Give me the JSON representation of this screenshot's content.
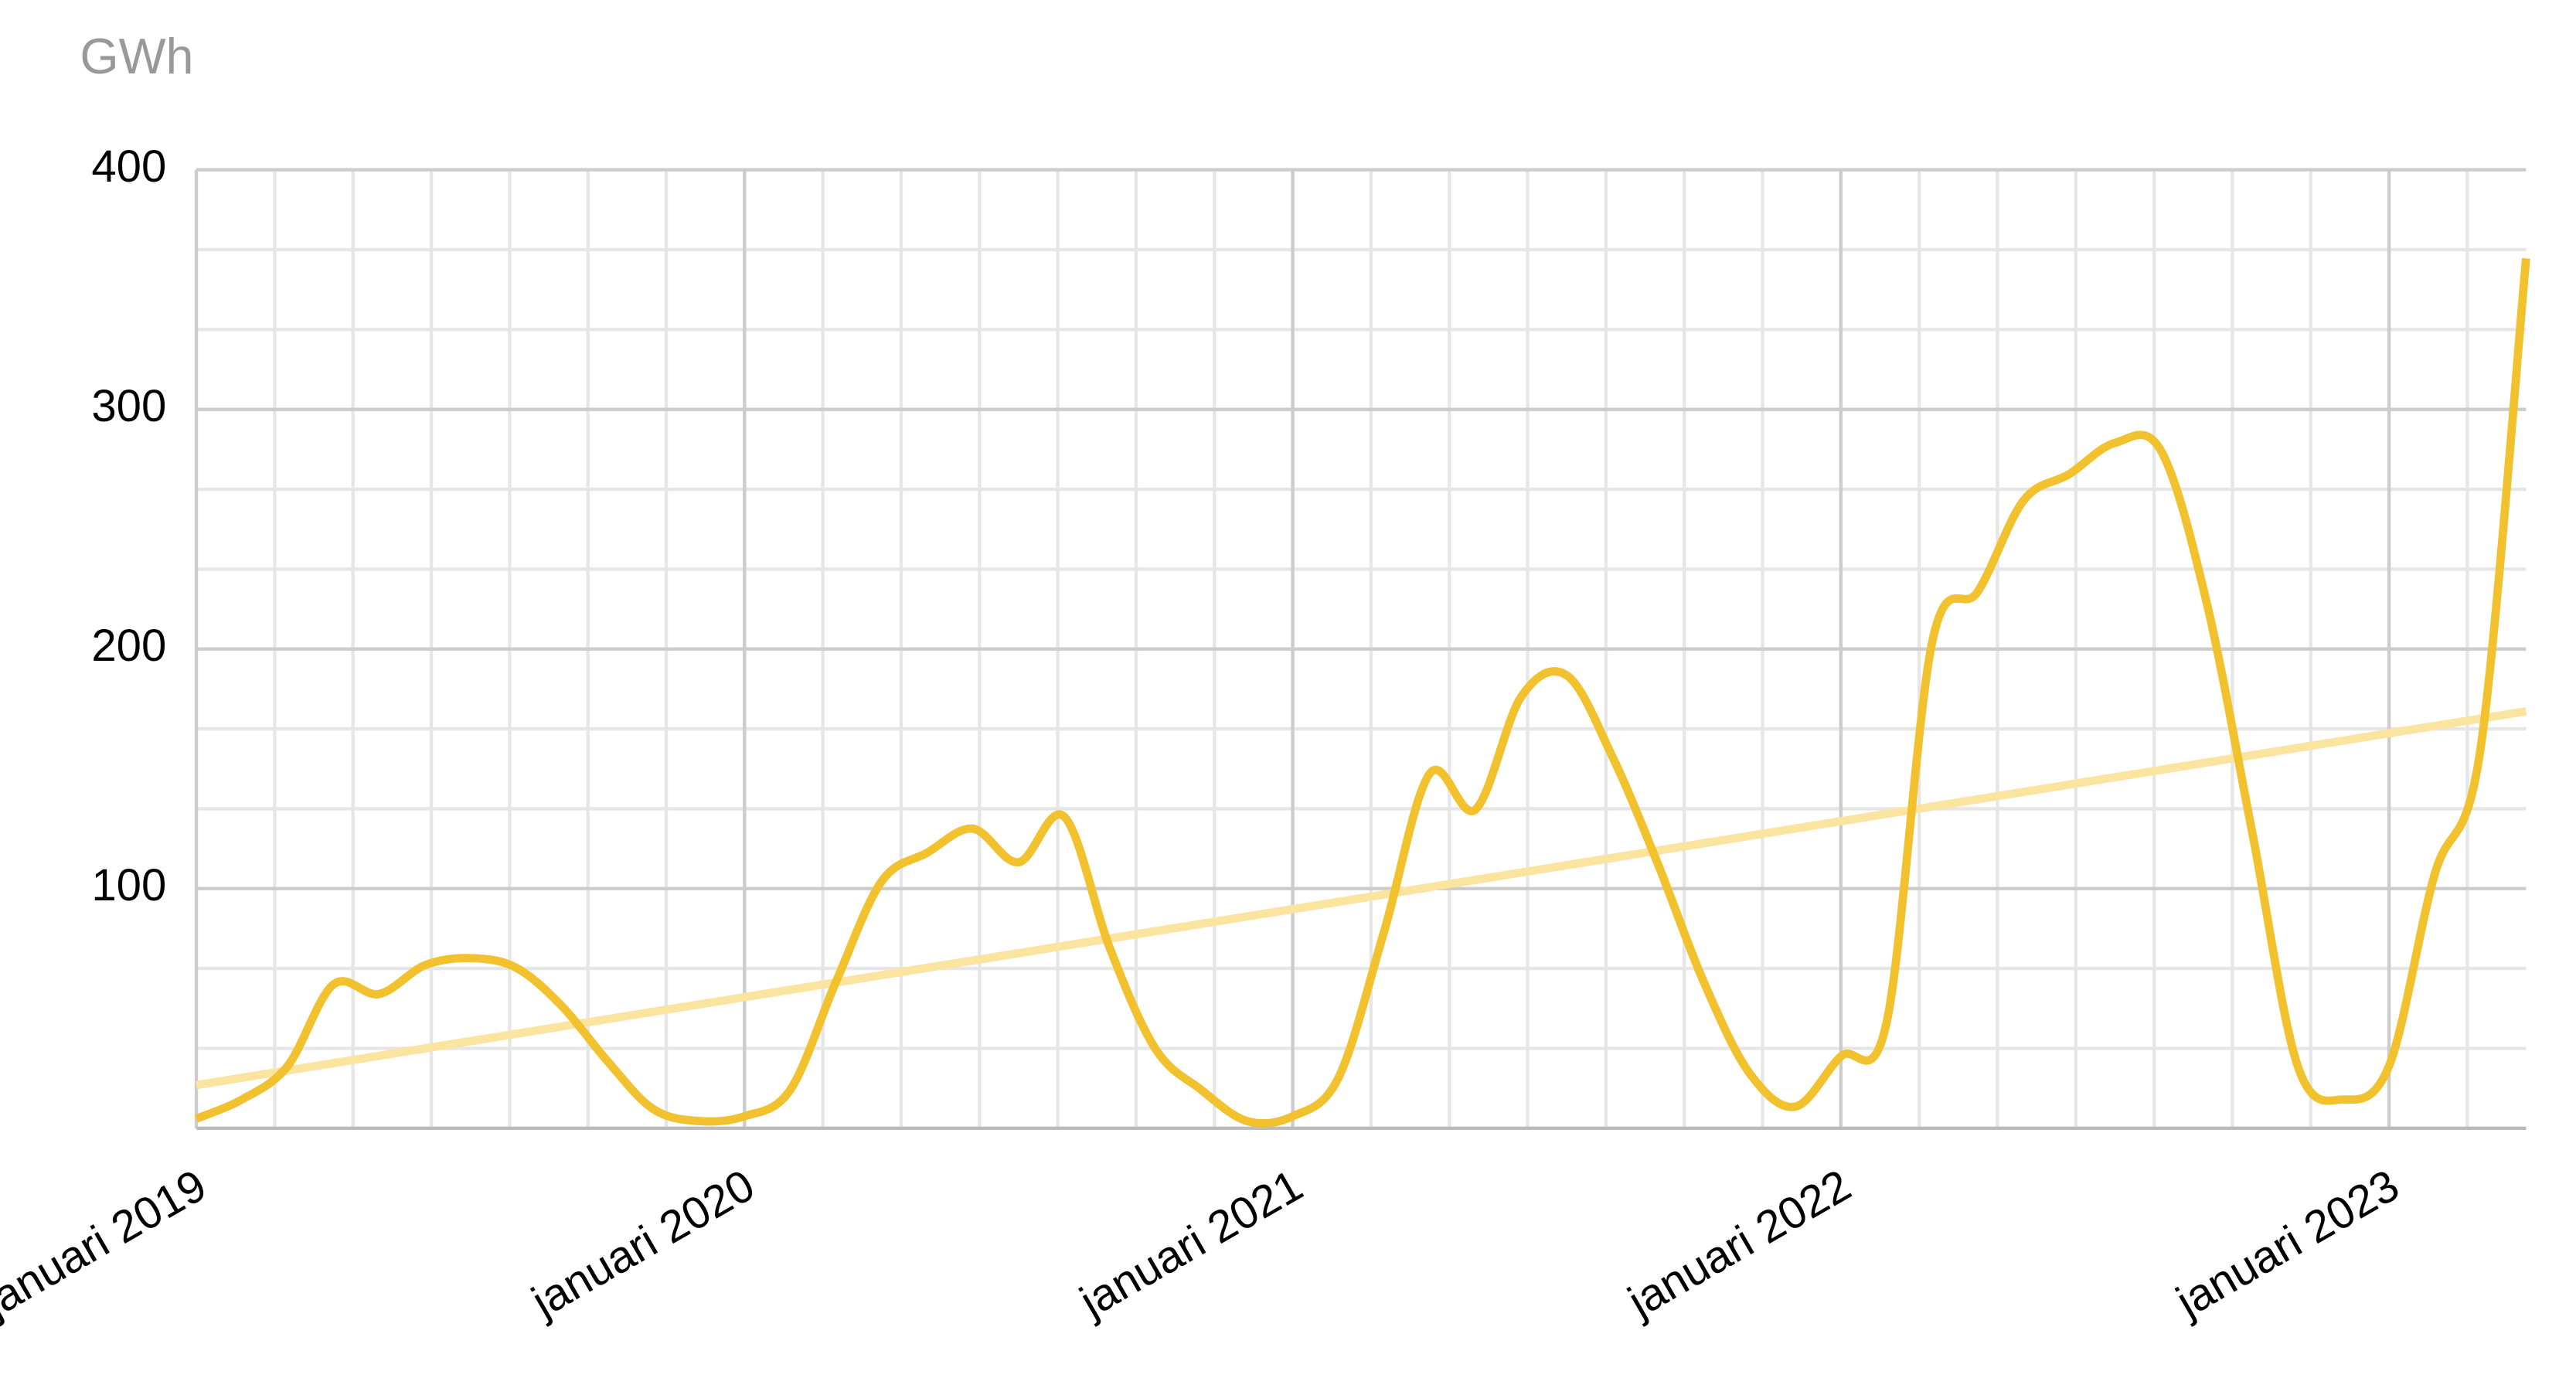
{
  "chart_data": {
    "type": "line",
    "y_label": "GWh",
    "categories": [
      "januari 2019",
      null,
      null,
      null,
      null,
      null,
      null,
      null,
      null,
      null,
      null,
      null,
      "januari 2020",
      null,
      null,
      null,
      null,
      null,
      null,
      null,
      null,
      null,
      null,
      null,
      "januari 2021",
      null,
      null,
      null,
      null,
      null,
      null,
      null,
      null,
      null,
      null,
      null,
      "januari 2022",
      null,
      null,
      null,
      null,
      null,
      null,
      null,
      null,
      null,
      null,
      null,
      "januari 2023",
      null,
      null,
      null
    ],
    "series": [
      {
        "color": "#f2c12e",
        "values": [
          4,
          12,
          26,
          60,
          56,
          68,
          71,
          67,
          51,
          28,
          8,
          3,
          5,
          16,
          61,
          103,
          115,
          125,
          111,
          130,
          75,
          33,
          16,
          3,
          5,
          21,
          82,
          148,
          133,
          180,
          189,
          155,
          110,
          61,
          23,
          9,
          30,
          44,
          203,
          224,
          262,
          273,
          286,
          283,
          220,
          124,
          26,
          12,
          26,
          106,
          158,
          363
        ]
      }
    ],
    "trendline": {
      "color": "#fbe3a0",
      "start": 18,
      "end": 174
    },
    "ylim": [
      0,
      400
    ],
    "yticks": [
      100,
      200,
      300,
      400
    ],
    "grid": true,
    "y_minor_per_major": 3,
    "x_minor_per_major": 7,
    "smooth": true
  }
}
